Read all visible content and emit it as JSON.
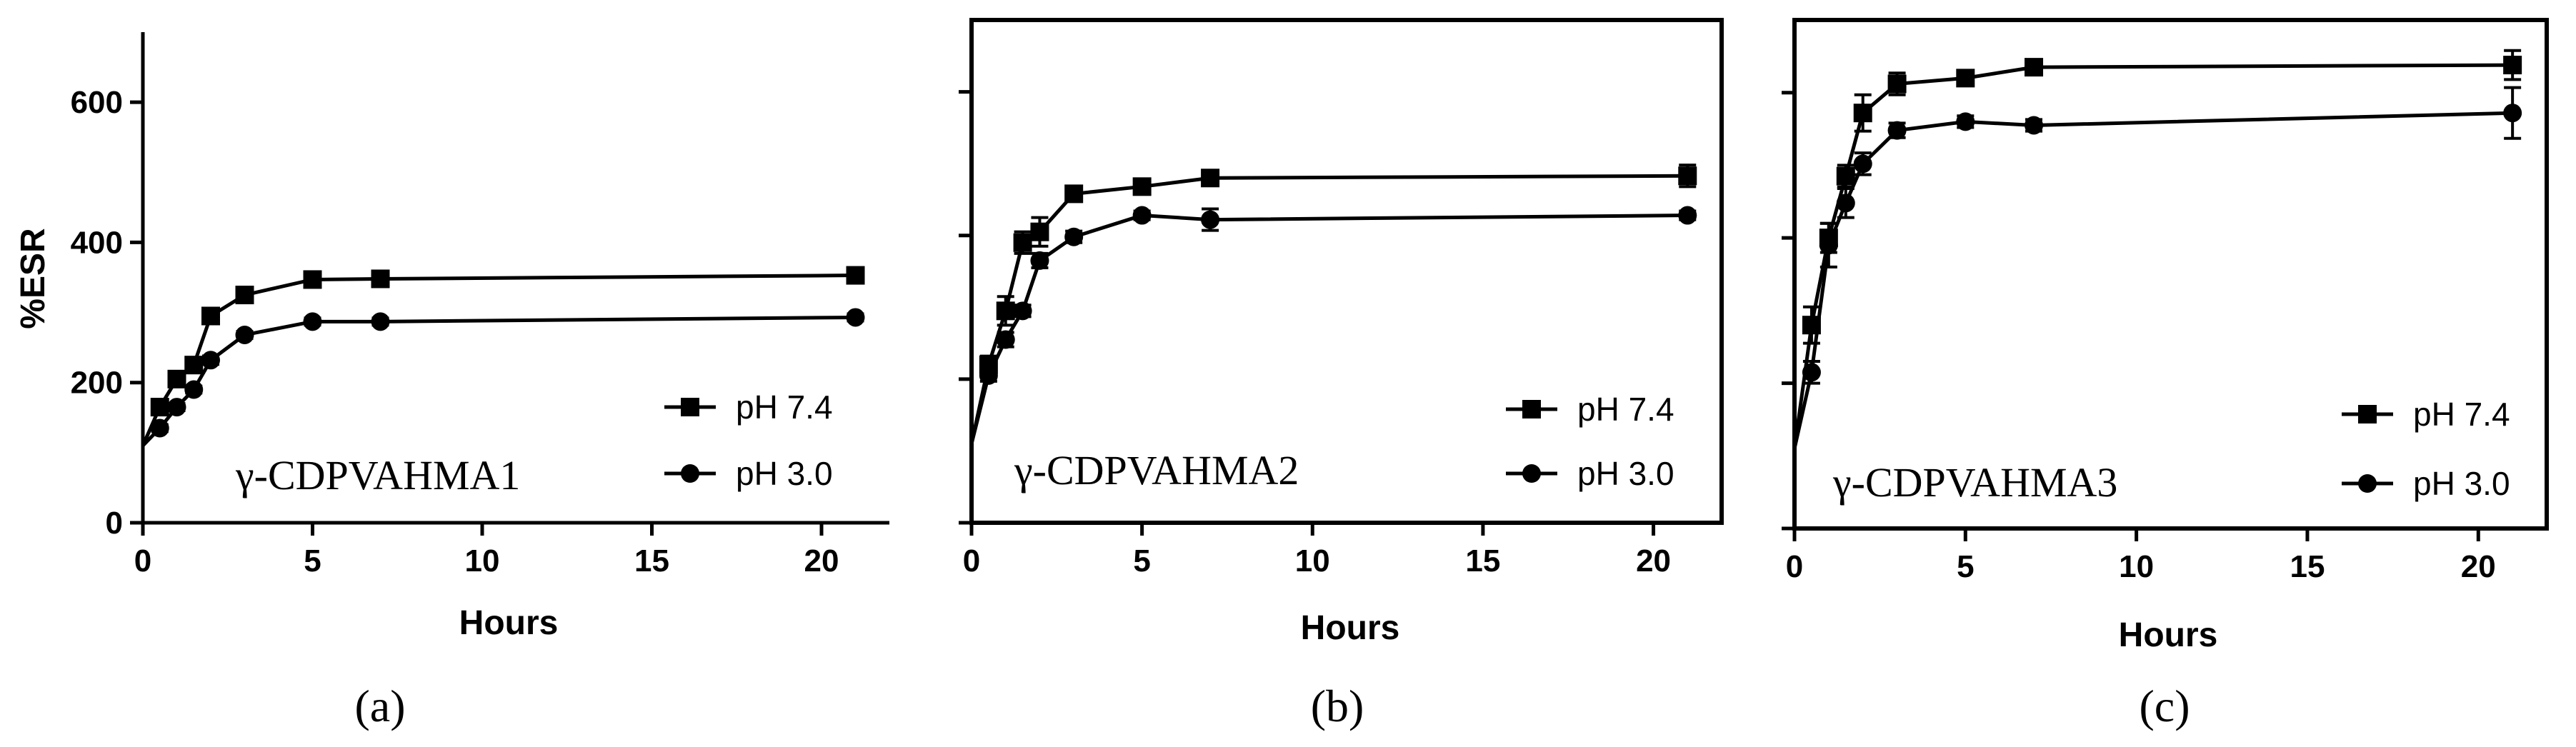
{
  "chart_data": [
    {
      "type": "line",
      "panel_label": "(a)",
      "title": "γ-CDPVAHMA1",
      "xlabel": "Hours",
      "ylabel": "%ESR",
      "xlim": [
        0,
        22
      ],
      "ylim": [
        0,
        700
      ],
      "xticks": [
        "0",
        "5",
        "10",
        "15",
        "20"
      ],
      "yticks": [
        "0",
        "200",
        "400",
        "600"
      ],
      "show_y_tick_labels": true,
      "legend_position": "bottom-right",
      "series": [
        {
          "name": "pH 7.4",
          "marker": "square",
          "x": [
            0,
            0.5,
            1,
            1.5,
            2,
            3,
            5,
            7,
            21
          ],
          "y": [
            110,
            165,
            205,
            225,
            295,
            325,
            347,
            348,
            353
          ],
          "err": [
            0,
            5,
            5,
            5,
            8,
            6,
            5,
            5,
            6
          ]
        },
        {
          "name": "pH 3.0",
          "marker": "circle",
          "x": [
            0,
            0.5,
            1,
            1.5,
            2,
            3,
            5,
            7,
            21
          ],
          "y": [
            110,
            135,
            165,
            190,
            232,
            268,
            287,
            287,
            293
          ],
          "err": [
            0,
            5,
            5,
            5,
            6,
            5,
            5,
            5,
            5
          ]
        }
      ]
    },
    {
      "type": "line",
      "panel_label": "(b)",
      "title": "γ-CDPVAHMA2",
      "xlabel": "Hours",
      "ylabel": "",
      "xlim": [
        0,
        22
      ],
      "ylim": [
        0,
        700
      ],
      "xticks": [
        "0",
        "5",
        "10",
        "15",
        "20"
      ],
      "yticks": [
        "0",
        "200",
        "400",
        "600"
      ],
      "show_y_tick_labels": false,
      "legend_position": "bottom-right",
      "series": [
        {
          "name": "pH 7.4",
          "marker": "square",
          "x": [
            0,
            0.5,
            1,
            1.5,
            2,
            3,
            5,
            7,
            21
          ],
          "y": [
            110,
            220,
            295,
            390,
            405,
            458,
            468,
            480,
            483
          ],
          "err": [
            0,
            12,
            20,
            15,
            20,
            8,
            8,
            10,
            15
          ]
        },
        {
          "name": "pH 3.0",
          "marker": "circle",
          "x": [
            0,
            0.5,
            1,
            1.5,
            2,
            3,
            5,
            7,
            21
          ],
          "y": [
            110,
            205,
            255,
            295,
            365,
            398,
            428,
            422,
            428
          ],
          "err": [
            0,
            8,
            10,
            8,
            10,
            8,
            6,
            15,
            6
          ]
        }
      ]
    },
    {
      "type": "line",
      "panel_label": "(c)",
      "title": "γ-CDPVAHMA3",
      "xlabel": "Hours",
      "ylabel": "",
      "xlim": [
        0,
        22
      ],
      "ylim": [
        0,
        700
      ],
      "xticks": [
        "0",
        "5",
        "10",
        "15",
        "20"
      ],
      "yticks": [
        "0",
        "200",
        "400",
        "600"
      ],
      "show_y_tick_labels": false,
      "legend_position": "bottom-right",
      "series": [
        {
          "name": "pH 7.4",
          "marker": "square",
          "x": [
            0,
            0.5,
            1,
            1.5,
            2,
            3,
            5,
            7,
            21
          ],
          "y": [
            110,
            280,
            400,
            485,
            572,
            612,
            620,
            635,
            638
          ],
          "err": [
            0,
            25,
            20,
            15,
            25,
            15,
            10,
            8,
            20
          ]
        },
        {
          "name": "pH 3.0",
          "marker": "circle",
          "x": [
            0,
            0.5,
            1,
            1.5,
            2,
            3,
            5,
            7,
            21
          ],
          "y": [
            110,
            215,
            390,
            448,
            502,
            548,
            560,
            555,
            572
          ],
          "err": [
            0,
            15,
            30,
            20,
            15,
            10,
            8,
            8,
            35
          ]
        }
      ]
    }
  ]
}
